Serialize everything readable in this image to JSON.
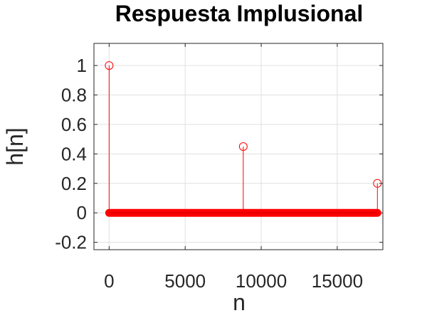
{
  "chart_data": {
    "type": "stem",
    "title": "Respuesta Implusional",
    "xlabel": "n",
    "ylabel": "h[n]",
    "xlim": [
      -1000,
      18000
    ],
    "ylim": [
      -0.25,
      1.15
    ],
    "x_ticks": [
      0,
      5000,
      10000,
      15000
    ],
    "x_tick_labels": [
      "0",
      "5000",
      "10000",
      "15000"
    ],
    "y_ticks": [
      1,
      0.8,
      0.6,
      0.4,
      0.2,
      0,
      -0.2
    ],
    "y_tick_labels": [
      "1",
      "0.8",
      "0.6",
      "0.4",
      "0.2",
      "0",
      "-0.2"
    ],
    "grid": true,
    "series": [
      {
        "color": "#ff0000",
        "marker": "circle-open",
        "impulses": [
          {
            "n": 0,
            "value": 1
          },
          {
            "n": 8820,
            "value": 0.45
          },
          {
            "n": 17640,
            "value": 0.2
          }
        ],
        "n_range": [
          0,
          17640
        ],
        "baseline_value": 0
      }
    ]
  }
}
